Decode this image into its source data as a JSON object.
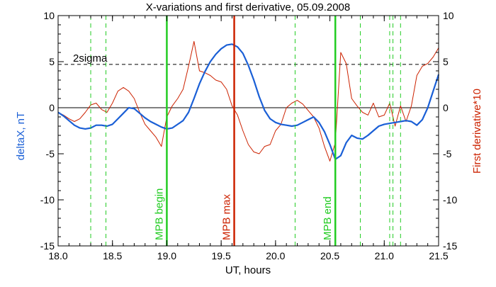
{
  "chart_data": {
    "type": "line",
    "title": "X-variations and first derivative, 05.09.2008",
    "xlabel": "UT, hours",
    "ylabel_left": "deltaX, nT",
    "ylabel_right": "First derivative*10",
    "xlim": [
      18.0,
      21.5
    ],
    "ylim": [
      -15,
      10
    ],
    "x_ticks": [
      "18.0",
      "18.5",
      "19.0",
      "19.5",
      "20.0",
      "20.5",
      "21.0",
      "21.5"
    ],
    "y_ticks": [
      "10",
      "5",
      "0",
      "-5",
      "-10",
      "-15"
    ],
    "colors": {
      "deltaX": "#1a5fd6",
      "derivative": "#cc2200",
      "mpb_green": "#22cc22",
      "mpb_max": "#cc2200"
    },
    "threshold": {
      "label": "2sigma",
      "value": 4.7
    },
    "series": [
      {
        "key": "deltaX",
        "x": [
          18.0,
          18.05,
          18.1,
          18.15,
          18.2,
          18.25,
          18.3,
          18.35,
          18.4,
          18.45,
          18.5,
          18.55,
          18.6,
          18.65,
          18.7,
          18.75,
          18.8,
          18.85,
          18.9,
          18.95,
          19.0,
          19.05,
          19.1,
          19.15,
          19.2,
          19.25,
          19.3,
          19.35,
          19.4,
          19.45,
          19.5,
          19.55,
          19.6,
          19.65,
          19.7,
          19.75,
          19.8,
          19.85,
          19.9,
          19.95,
          20.0,
          20.05,
          20.1,
          20.15,
          20.2,
          20.25,
          20.3,
          20.35,
          20.4,
          20.45,
          20.5,
          20.55,
          20.6,
          20.65,
          20.7,
          20.75,
          20.8,
          20.85,
          20.9,
          20.95,
          21.0,
          21.05,
          21.1,
          21.15,
          21.2,
          21.25,
          21.3,
          21.35,
          21.4,
          21.45,
          21.5
        ],
        "values": [
          -0.5,
          -0.9,
          -1.4,
          -1.9,
          -2.2,
          -2.3,
          -2.2,
          -1.9,
          -1.9,
          -2.0,
          -1.8,
          -1.2,
          -0.6,
          0.0,
          -0.1,
          -0.6,
          -1.1,
          -1.5,
          -1.8,
          -2.1,
          -2.3,
          -2.2,
          -1.8,
          -1.4,
          -0.5,
          1.0,
          2.6,
          3.9,
          5.0,
          5.8,
          6.4,
          6.8,
          6.9,
          6.6,
          5.9,
          4.6,
          3.0,
          1.2,
          -0.3,
          -1.2,
          -1.6,
          -1.8,
          -1.9,
          -2.0,
          -1.9,
          -1.6,
          -1.3,
          -1.0,
          -1.6,
          -2.6,
          -4.0,
          -5.6,
          -5.2,
          -3.8,
          -3.0,
          -3.3,
          -3.4,
          -3.0,
          -2.5,
          -2.0,
          -1.8,
          -1.7,
          -1.6,
          -1.5,
          -1.4,
          -1.5,
          -1.9,
          -1.3,
          0.0,
          1.8,
          3.6
        ]
      },
      {
        "key": "derivative",
        "x": [
          18.0,
          18.05,
          18.1,
          18.15,
          18.2,
          18.25,
          18.3,
          18.35,
          18.4,
          18.45,
          18.5,
          18.55,
          18.6,
          18.65,
          18.7,
          18.75,
          18.8,
          18.85,
          18.9,
          18.95,
          19.0,
          19.05,
          19.1,
          19.15,
          19.2,
          19.25,
          19.3,
          19.35,
          19.4,
          19.45,
          19.5,
          19.55,
          19.6,
          19.65,
          19.7,
          19.75,
          19.8,
          19.85,
          19.9,
          19.95,
          20.0,
          20.05,
          20.1,
          20.15,
          20.2,
          20.25,
          20.3,
          20.35,
          20.4,
          20.45,
          20.5,
          20.55,
          20.6,
          20.65,
          20.7,
          20.75,
          20.8,
          20.85,
          20.9,
          20.95,
          21.0,
          21.05,
          21.1,
          21.15,
          21.2,
          21.25,
          21.3,
          21.35,
          21.4,
          21.45,
          21.5
        ],
        "values": [
          -0.5,
          -0.8,
          -1.2,
          -1.5,
          -1.2,
          -0.5,
          0.3,
          0.5,
          -0.2,
          -0.5,
          0.5,
          1.8,
          2.2,
          1.8,
          1.0,
          -0.5,
          -1.8,
          -2.5,
          -3.2,
          -4.2,
          -1.0,
          0.2,
          1.0,
          2.0,
          4.5,
          7.2,
          4.0,
          3.8,
          3.5,
          3.0,
          2.8,
          2.0,
          0.2,
          -0.8,
          -2.5,
          -4.0,
          -4.8,
          -5.0,
          -4.2,
          -4.0,
          -2.5,
          -1.8,
          0.0,
          0.5,
          0.8,
          0.4,
          -0.3,
          -1.0,
          -2.2,
          -4.2,
          -5.8,
          -3.8,
          6.0,
          4.8,
          1.0,
          0.2,
          -0.5,
          -0.8,
          0.5,
          -1.0,
          -0.8,
          0.5,
          -2.0,
          0.2,
          -1.5,
          0.2,
          3.5,
          4.5,
          4.8,
          5.5,
          6.5
        ]
      }
    ],
    "vertical_markers": [
      {
        "label": "MPB begin",
        "x": 19.0,
        "color": "#22cc22"
      },
      {
        "label": "MPB max",
        "x": 19.62,
        "color": "#cc2200"
      },
      {
        "label": "MPB end",
        "x": 20.55,
        "color": "#22cc22"
      }
    ],
    "dashed_markers": [
      18.3,
      18.44,
      20.18,
      20.78,
      21.05,
      21.08,
      21.15
    ]
  }
}
